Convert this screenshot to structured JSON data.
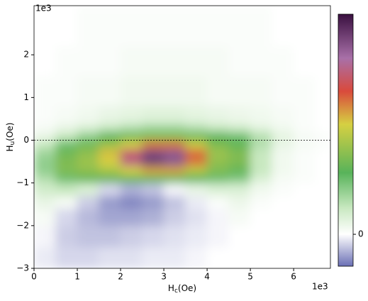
{
  "chart_data": {
    "type": "heatmap",
    "xlabel": {
      "symbol": "H",
      "subscript": "c",
      "unit": "(Oe)"
    },
    "ylabel": {
      "symbol": "H",
      "subscript": "u",
      "unit": "(Oe)"
    },
    "x_offset_label": "1e3",
    "y_offset_label": "1e3",
    "xlim": [
      0,
      6.85
    ],
    "ylim": [
      -3,
      3.15
    ],
    "xticks": [
      0,
      1,
      2,
      3,
      4,
      5,
      6
    ],
    "yticks": [
      {
        "value": -3,
        "label": "−3"
      },
      {
        "value": -2,
        "label": "−2"
      },
      {
        "value": -1,
        "label": "−1"
      },
      0,
      1,
      2
    ],
    "hline": 0,
    "x_bins": [
      0,
      0.5,
      1,
      1.5,
      2,
      2.5,
      3,
      3.5,
      4,
      4.5,
      5,
      5.5,
      6,
      6.5,
      6.85
    ],
    "y_bins": [
      -3,
      -2.5,
      -2,
      -1.6,
      -1.3,
      -1,
      -0.8,
      -0.6,
      -0.4,
      -0.2,
      0,
      0.2,
      0.4,
      0.8,
      1.5,
      2.2,
      3.15
    ],
    "z": [
      [
        -0.02,
        -0.04,
        -0.04,
        -0.03,
        -0.03,
        -0.02,
        -0.02,
        -0.01,
        0,
        0,
        0,
        0,
        0,
        0
      ],
      [
        -0.01,
        -0.05,
        -0.06,
        -0.06,
        -0.05,
        -0.04,
        -0.03,
        -0.02,
        -0.01,
        0,
        0,
        0,
        0,
        0
      ],
      [
        0.02,
        -0.04,
        -0.07,
        -0.09,
        -0.09,
        -0.08,
        -0.05,
        -0.03,
        -0.01,
        0.02,
        0,
        0,
        0,
        0
      ],
      [
        0.05,
        0.02,
        -0.05,
        -0.1,
        -0.12,
        -0.1,
        -0.06,
        -0.02,
        0.01,
        0.04,
        0.01,
        0,
        0,
        0
      ],
      [
        0.1,
        0.12,
        0.08,
        -0.04,
        -0.08,
        -0.06,
        -0.01,
        0.05,
        0.08,
        0.08,
        0.03,
        0.01,
        0,
        0
      ],
      [
        0.15,
        0.25,
        0.3,
        0.3,
        0.3,
        0.3,
        0.3,
        0.28,
        0.25,
        0.22,
        0.08,
        0.02,
        0.01,
        0
      ],
      [
        0.2,
        0.35,
        0.38,
        0.42,
        0.5,
        0.55,
        0.55,
        0.45,
        0.35,
        0.3,
        0.12,
        0.03,
        0.01,
        0
      ],
      [
        0.2,
        0.35,
        0.4,
        0.5,
        0.75,
        0.9,
        0.85,
        0.6,
        0.38,
        0.35,
        0.12,
        0.03,
        0.01,
        0
      ],
      [
        0.18,
        0.32,
        0.38,
        0.52,
        0.72,
        0.88,
        0.85,
        0.62,
        0.4,
        0.35,
        0.12,
        0.03,
        0.01,
        0
      ],
      [
        0.12,
        0.25,
        0.32,
        0.4,
        0.5,
        0.6,
        0.6,
        0.48,
        0.35,
        0.3,
        0.15,
        0.05,
        0.02,
        0.01
      ],
      [
        0.05,
        0.12,
        0.2,
        0.28,
        0.32,
        0.35,
        0.35,
        0.32,
        0.28,
        0.25,
        0.15,
        0.06,
        0.02,
        0.01
      ],
      [
        0.02,
        0.05,
        0.08,
        0.12,
        0.15,
        0.18,
        0.18,
        0.15,
        0.12,
        0.1,
        0.06,
        0.03,
        0.01,
        0
      ],
      [
        0.01,
        0.02,
        0.03,
        0.05,
        0.06,
        0.07,
        0.07,
        0.06,
        0.05,
        0.04,
        0.03,
        0.02,
        0.01,
        0
      ],
      [
        0.01,
        0.01,
        0.02,
        0.02,
        0.03,
        0.03,
        0.03,
        0.03,
        0.02,
        0.02,
        0.02,
        0.01,
        0.01,
        0
      ],
      [
        0,
        0.01,
        0.01,
        0.01,
        0.02,
        0.02,
        0.02,
        0.02,
        0.02,
        0.01,
        0.01,
        0.01,
        0,
        0
      ],
      [
        0,
        0,
        0.01,
        0.01,
        0.01,
        0.01,
        0.01,
        0.01,
        0.01,
        0.01,
        0.01,
        0,
        0,
        0
      ]
    ],
    "zlim": [
      -0.145,
      1
    ],
    "colorbar_ticks": [
      0
    ],
    "colormap": [
      [
        -0.145,
        "#6a6fb5"
      ],
      [
        0,
        "#ffffff"
      ],
      [
        0.12,
        "#c8e8c0"
      ],
      [
        0.28,
        "#58b35a"
      ],
      [
        0.5,
        "#d6d042"
      ],
      [
        0.65,
        "#d94a3c"
      ],
      [
        0.8,
        "#a870a8"
      ],
      [
        1,
        "#3a1040"
      ]
    ]
  }
}
